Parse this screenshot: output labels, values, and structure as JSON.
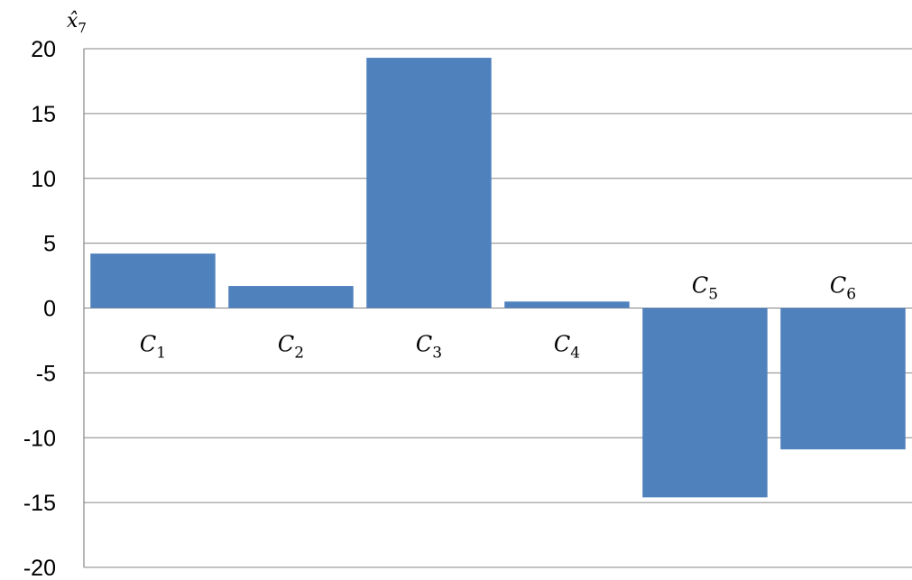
{
  "chart_data": {
    "type": "bar",
    "ylabel": "x̂",
    "ylabel_sub": "7",
    "categories": [
      {
        "base": "C",
        "sub": "1"
      },
      {
        "base": "C",
        "sub": "2"
      },
      {
        "base": "C",
        "sub": "3"
      },
      {
        "base": "C",
        "sub": "4"
      },
      {
        "base": "C",
        "sub": "5"
      },
      {
        "base": "C",
        "sub": "6"
      }
    ],
    "values": [
      4.2,
      1.7,
      19.3,
      0.5,
      -14.6,
      -10.9
    ],
    "ylim": [
      -20,
      20
    ],
    "yticks": [
      20,
      15,
      10,
      5,
      0,
      -5,
      -10,
      -15,
      -20
    ],
    "grid": true,
    "bar_color": "#4f81bd"
  }
}
